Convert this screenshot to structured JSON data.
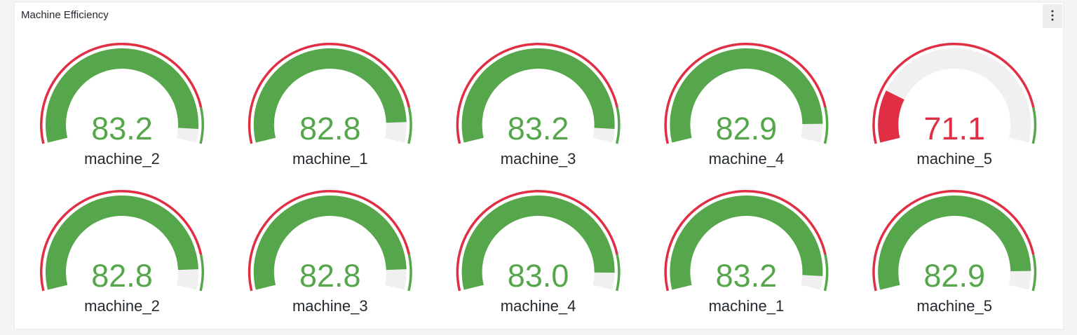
{
  "chart_data": {
    "type": "gauge",
    "title": "Machine Efficiency",
    "categories": [
      "machine_2",
      "machine_1",
      "machine_3",
      "machine_4",
      "machine_5",
      "machine_2",
      "machine_3",
      "machine_4",
      "machine_1",
      "machine_5"
    ],
    "values": [
      83.2,
      82.8,
      83.2,
      82.9,
      71.1,
      82.8,
      82.8,
      83.0,
      83.2,
      82.9
    ],
    "value_labels": [
      "83.2",
      "82.8",
      "83.2",
      "82.9",
      "71.1",
      "82.8",
      "82.8",
      "83.0",
      "83.2",
      "82.9"
    ],
    "min": 68,
    "max": 84,
    "thresholds": [
      {
        "value": 68,
        "color": "#e02f44"
      },
      {
        "value": 82,
        "color": "#56a64b"
      }
    ],
    "track_color": "#f0f0f0"
  }
}
